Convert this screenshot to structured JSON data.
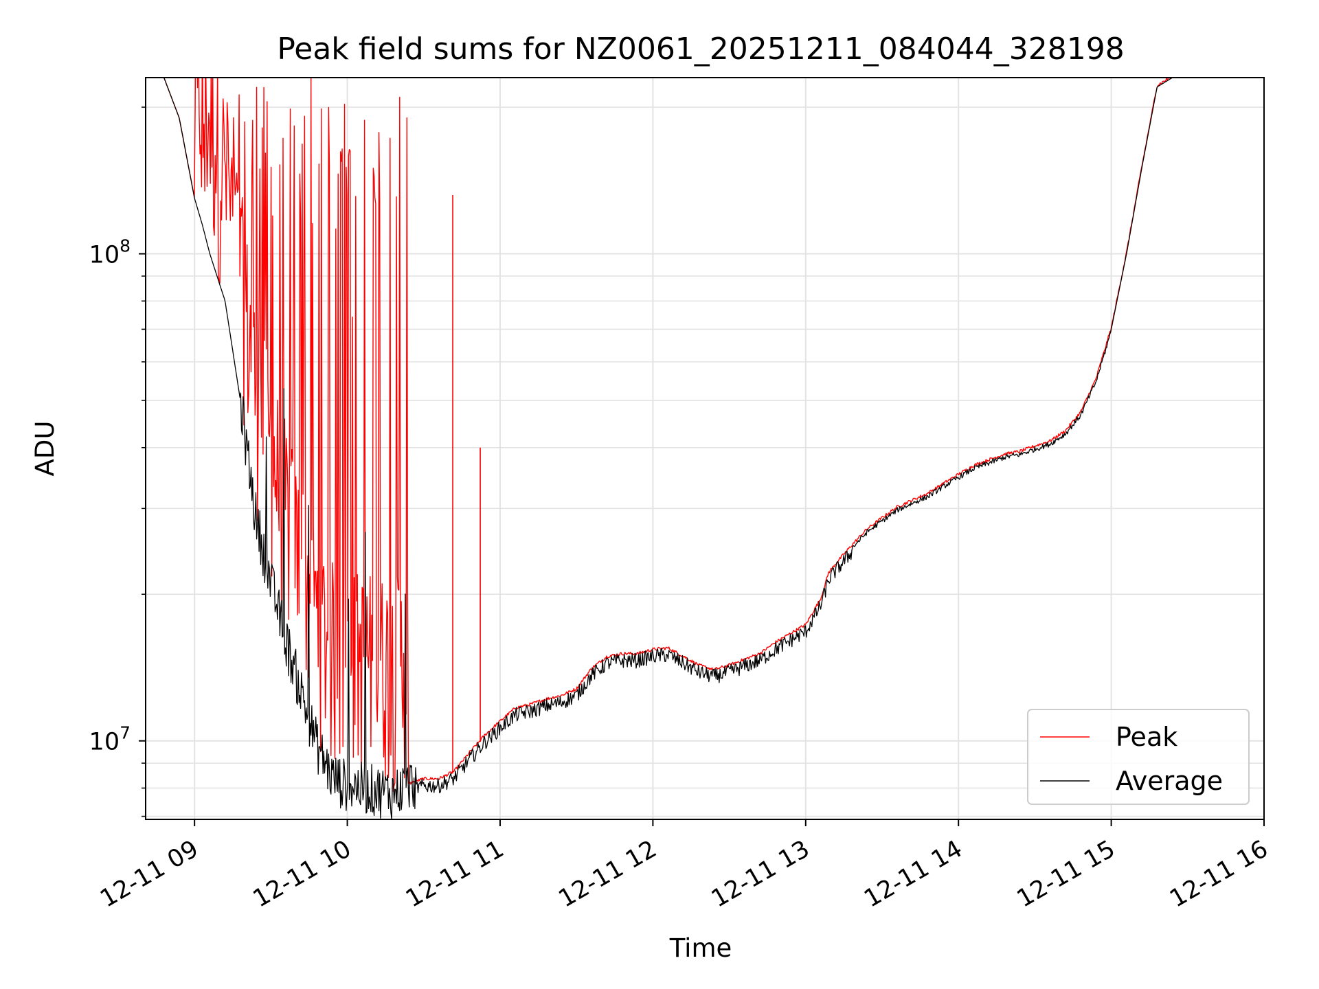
{
  "chart_data": {
    "type": "line",
    "title": "Peak field sums for NZ0061_20251211_084044_328198",
    "xlabel": "Time",
    "ylabel": "ADU",
    "yscale": "log",
    "xlim": [
      8.68,
      16.0
    ],
    "ylim": [
      6900000,
      230000000
    ],
    "grid": true,
    "legend": {
      "position": "lower right",
      "entries": [
        "Peak",
        "Average"
      ]
    },
    "x_ticks": [
      {
        "value": 9,
        "label": "12-11 09"
      },
      {
        "value": 10,
        "label": "12-11 10"
      },
      {
        "value": 11,
        "label": "12-11 11"
      },
      {
        "value": 12,
        "label": "12-11 12"
      },
      {
        "value": 13,
        "label": "12-11 13"
      },
      {
        "value": 14,
        "label": "12-11 14"
      },
      {
        "value": 15,
        "label": "12-11 15"
      },
      {
        "value": 16,
        "label": "12-11 16"
      }
    ],
    "y_ticks": [
      {
        "value": 10000000,
        "base": "10",
        "exp": "7"
      },
      {
        "value": 100000000,
        "base": "10",
        "exp": "8"
      }
    ],
    "colors": {
      "peak": "#ff0000",
      "average": "#000000",
      "grid": "#e3e3e3"
    },
    "average_curve": {
      "x": [
        8.68,
        8.8,
        8.9,
        9.0,
        9.05,
        9.1,
        9.2,
        9.3,
        9.4,
        9.5,
        9.6,
        9.7,
        9.8,
        9.9,
        10.0,
        10.1,
        10.2,
        10.3,
        10.4,
        10.5,
        10.6,
        10.7,
        10.8,
        10.9,
        11.0,
        11.1,
        11.2,
        11.3,
        11.4,
        11.5,
        11.6,
        11.7,
        11.8,
        11.9,
        12.0,
        12.1,
        12.2,
        12.3,
        12.4,
        12.5,
        12.6,
        12.7,
        12.8,
        12.9,
        13.0,
        13.1,
        13.15,
        13.2,
        13.25,
        13.3,
        13.4,
        13.5,
        13.6,
        13.7,
        13.8,
        13.9,
        14.0,
        14.1,
        14.2,
        14.3,
        14.4,
        14.5,
        14.6,
        14.7,
        14.8,
        14.9,
        15.0,
        15.1,
        15.2,
        15.3,
        15.4,
        15.5,
        15.6,
        15.7,
        15.8,
        15.9,
        16.0
      ],
      "y": [
        230000000,
        230000000,
        190000000,
        130000000,
        115000000,
        100000000,
        80000000,
        50000000,
        29000000,
        21000000,
        16000000,
        12500000,
        9800000,
        8400000,
        8100000,
        8000000,
        7900000,
        7800000,
        8100000,
        8300000,
        8300000,
        8600000,
        9400000,
        10200000,
        10900000,
        11600000,
        11800000,
        12100000,
        12300000,
        12700000,
        14000000,
        14800000,
        15000000,
        15000000,
        15300000,
        15400000,
        14800000,
        14200000,
        13900000,
        14200000,
        14600000,
        15000000,
        15800000,
        16500000,
        17200000,
        19500000,
        22000000,
        23000000,
        24000000,
        25000000,
        27000000,
        28500000,
        30000000,
        31000000,
        32000000,
        33500000,
        35000000,
        36500000,
        37500000,
        38500000,
        39000000,
        40000000,
        41000000,
        43000000,
        47000000,
        55000000,
        70000000,
        100000000,
        150000000,
        220000000,
        230000000,
        230000000,
        230000000,
        230000000,
        230000000,
        230000000,
        230000000
      ]
    },
    "peak_noise_region": {
      "x_range": [
        9.0,
        10.4
      ],
      "description_only": "red spikes up to the top of the axis",
      "spike_tops": [
        230000000,
        150000000,
        200000000,
        180000000,
        230000000,
        120000000,
        190000000,
        230000000,
        160000000,
        230000000,
        140000000,
        210000000,
        230000000,
        170000000,
        230000000,
        200000000,
        230000000,
        230000000,
        120000000,
        230000000,
        230000000,
        230000000,
        230000000,
        230000000
      ]
    },
    "isolated_peak_spikes": [
      {
        "x": 10.69,
        "y": 132000000
      },
      {
        "x": 10.87,
        "y": 40000000
      }
    ]
  }
}
